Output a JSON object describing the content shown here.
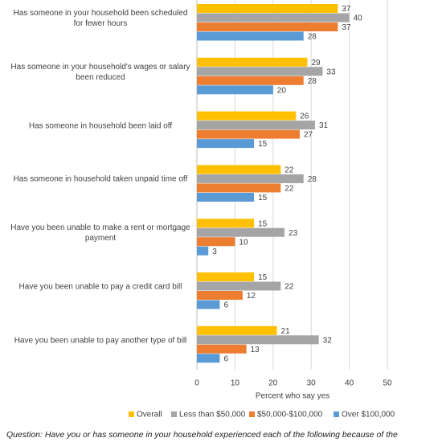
{
  "chart_data": {
    "type": "hbar",
    "x_label": "Percent who say yes",
    "categories": [
      "Has someone in your household been scheduled for fewer hours",
      "Has someone in your household's wages or salary been reduced",
      "Has someone in household been laid off",
      "Has someone in household taken unpaid time off",
      "Have you been unable to make a rent or mortgage payment",
      "Have you been unable to pay a credit card bill",
      "Have you been unable to pay another type of bill"
    ],
    "series": [
      {
        "name": "Overall",
        "color": "#ffc000",
        "values": [
          37,
          29,
          26,
          22,
          15,
          15,
          21
        ]
      },
      {
        "name": "Less than $50,000",
        "color": "#a5a5a5",
        "values": [
          40,
          33,
          31,
          28,
          23,
          22,
          32
        ]
      },
      {
        "name": "$50,000-$100,000",
        "color": "#ed7d31",
        "values": [
          37,
          28,
          27,
          22,
          10,
          12,
          13
        ]
      },
      {
        "name": "Over $100,000",
        "color": "#5b9bd5",
        "values": [
          28,
          20,
          15,
          15,
          3,
          6,
          6
        ]
      }
    ],
    "xlim": [
      0,
      50
    ],
    "xticks": [
      0,
      10,
      20,
      30,
      40,
      50
    ],
    "grid": true,
    "legend": "bottom",
    "note": "Question: Have you or has someone in your household experienced each of the following because of the"
  }
}
